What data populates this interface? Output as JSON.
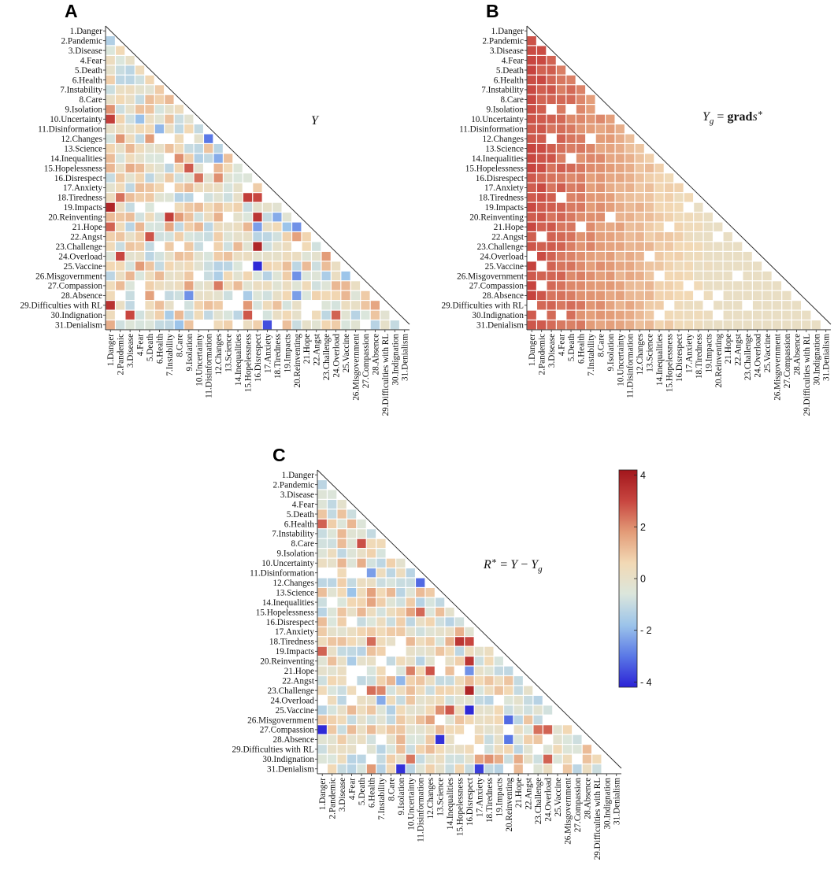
{
  "labels": [
    "1.Danger",
    "2.Pandemic",
    "3.Disease",
    "4.Fear",
    "5.Death",
    "6.Health",
    "7.Instability",
    "8.Care",
    "9.Isolation",
    "10.Uncertainty",
    "11.Disinformation",
    "12.Changes",
    "13.Science",
    "14.Inequalities",
    "15.Hopelessness",
    "16.Disrespect",
    "17.Anxiety",
    "18.Tiredness",
    "19.Impacts",
    "20.Reinventing",
    "21.Hope",
    "22.Angst",
    "23.Challenge",
    "24.Overload",
    "25.Vaccine",
    "26.Misgovernment",
    "27.Compassion",
    "28.Absence",
    "29.Difficulties with RL",
    "30.Indignation",
    "31.Denialism"
  ],
  "colorbar": {
    "ticks": [
      "4",
      "2",
      "0",
      "- 2",
      "- 4"
    ],
    "range": [
      -4.2,
      4.2
    ],
    "colors": [
      "#2b22d6",
      "#5a78e6",
      "#9cc4ea",
      "#dbe6dc",
      "#f2d9b5",
      "#e39c78",
      "#c84640",
      "#a2161c"
    ]
  },
  "chart_data": [
    {
      "panel": "A",
      "title": "Y",
      "type": "heatmap",
      "rows": 31,
      "mask": "strict lower triangle",
      "seed": 11,
      "cells": [
        {
          "row": 2,
          "col": 1,
          "value": -1.4
        },
        {
          "row": 10,
          "col": 1,
          "value": 3.2
        },
        {
          "row": 19,
          "col": 1,
          "value": 3.8
        },
        {
          "row": 29,
          "col": 1,
          "value": 3.5
        },
        {
          "row": 26,
          "col": 1,
          "value": -1.2
        },
        {
          "row": 21,
          "col": 1,
          "value": 2.6
        },
        {
          "row": 18,
          "col": 2,
          "value": 2.4
        },
        {
          "row": 24,
          "col": 2,
          "value": 3.0
        },
        {
          "row": 12,
          "col": 5,
          "value": 1.8
        },
        {
          "row": 11,
          "col": 6,
          "value": -2.0
        },
        {
          "row": 12,
          "col": 11,
          "value": -3.0
        },
        {
          "row": 14,
          "col": 10,
          "value": -1.4
        },
        {
          "row": 14,
          "col": 12,
          "value": -2.2
        },
        {
          "row": 14,
          "col": 8,
          "value": 2.0
        },
        {
          "row": 18,
          "col": 15,
          "value": 3.2
        },
        {
          "row": 18,
          "col": 16,
          "value": 3.0
        },
        {
          "row": 20,
          "col": 16,
          "value": 3.4
        },
        {
          "row": 21,
          "col": 16,
          "value": -2.4
        },
        {
          "row": 23,
          "col": 16,
          "value": 3.8
        },
        {
          "row": 25,
          "col": 16,
          "value": -4.1
        },
        {
          "row": 20,
          "col": 18,
          "value": -2.2
        },
        {
          "row": 21,
          "col": 19,
          "value": -1.8
        },
        {
          "row": 21,
          "col": 20,
          "value": -2.6
        },
        {
          "row": 26,
          "col": 20,
          "value": -2.6
        },
        {
          "row": 28,
          "col": 20,
          "value": -2.4
        },
        {
          "row": 28,
          "col": 9,
          "value": -2.6
        },
        {
          "row": 31,
          "col": 8,
          "value": -1.8
        },
        {
          "row": 31,
          "col": 17,
          "value": -3.6
        },
        {
          "row": 30,
          "col": 24,
          "value": 2.6
        },
        {
          "row": 26,
          "col": 23,
          "value": -1.5
        },
        {
          "row": 29,
          "col": 28,
          "value": 1.6
        },
        {
          "row": 30,
          "col": 3,
          "value": 3.0
        },
        {
          "row": 22,
          "col": 5,
          "value": 2.8
        }
      ]
    },
    {
      "panel": "B",
      "title": "Y_g = grads*",
      "type": "heatmap",
      "rows": 31,
      "mask": "strict lower triangle",
      "pattern": "smooth; values decrease from first column (about 2.8) toward late columns (about 0.2)",
      "seed": 23,
      "cells": []
    },
    {
      "panel": "C",
      "title": "R* = Y - Y_g",
      "type": "heatmap",
      "rows": 31,
      "mask": "strict lower triangle",
      "seed": 37,
      "cells": [
        {
          "row": 2,
          "col": 1,
          "value": -1.2
        },
        {
          "row": 12,
          "col": 11,
          "value": -3.2
        },
        {
          "row": 11,
          "col": 6,
          "value": -2.4
        },
        {
          "row": 18,
          "col": 15,
          "value": 3.4
        },
        {
          "row": 18,
          "col": 16,
          "value": 3.0
        },
        {
          "row": 20,
          "col": 16,
          "value": 3.4
        },
        {
          "row": 21,
          "col": 16,
          "value": -2.6
        },
        {
          "row": 23,
          "col": 16,
          "value": 3.8
        },
        {
          "row": 25,
          "col": 16,
          "value": -4.1
        },
        {
          "row": 27,
          "col": 1,
          "value": -4.1
        },
        {
          "row": 19,
          "col": 1,
          "value": 2.6
        },
        {
          "row": 21,
          "col": 12,
          "value": 2.8
        },
        {
          "row": 21,
          "col": 10,
          "value": 2.2
        },
        {
          "row": 28,
          "col": 13,
          "value": -4.0
        },
        {
          "row": 31,
          "col": 9,
          "value": -4.0
        },
        {
          "row": 31,
          "col": 17,
          "value": -3.8
        },
        {
          "row": 26,
          "col": 20,
          "value": -3.2
        },
        {
          "row": 28,
          "col": 20,
          "value": -3.0
        },
        {
          "row": 27,
          "col": 23,
          "value": 2.4
        },
        {
          "row": 27,
          "col": 24,
          "value": 2.6
        },
        {
          "row": 30,
          "col": 24,
          "value": 2.6
        },
        {
          "row": 22,
          "col": 9,
          "value": -2.0
        },
        {
          "row": 13,
          "col": 4,
          "value": -1.8
        },
        {
          "row": 24,
          "col": 7,
          "value": -2.2
        }
      ]
    }
  ]
}
